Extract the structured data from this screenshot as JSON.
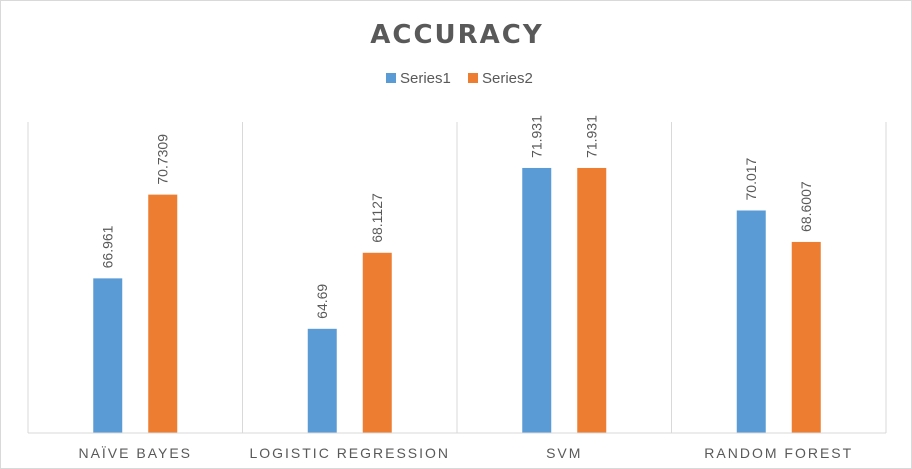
{
  "chart_data": {
    "type": "bar",
    "title": "ACCURACY",
    "categories": [
      "NAÏVE BAYES",
      "LOGISTIC REGRESSION",
      "SVM",
      "RANDOM FOREST"
    ],
    "series": [
      {
        "name": "Series1",
        "color": "#5b9bd5",
        "values": [
          66.961,
          64.69,
          71.931,
          70.017
        ],
        "labels": [
          "66.961",
          "64.69",
          "71.931",
          "70.017"
        ]
      },
      {
        "name": "Series2",
        "color": "#ed7d31",
        "values": [
          70.7309,
          68.1127,
          71.931,
          68.6007
        ],
        "labels": [
          "70.7309",
          "68.1127",
          "71.931",
          "68.6007"
        ]
      }
    ],
    "ylim": [
      60,
      74
    ],
    "grid": "vertical category separators",
    "legend": "top-center",
    "data_labels": "rotated above bars"
  }
}
